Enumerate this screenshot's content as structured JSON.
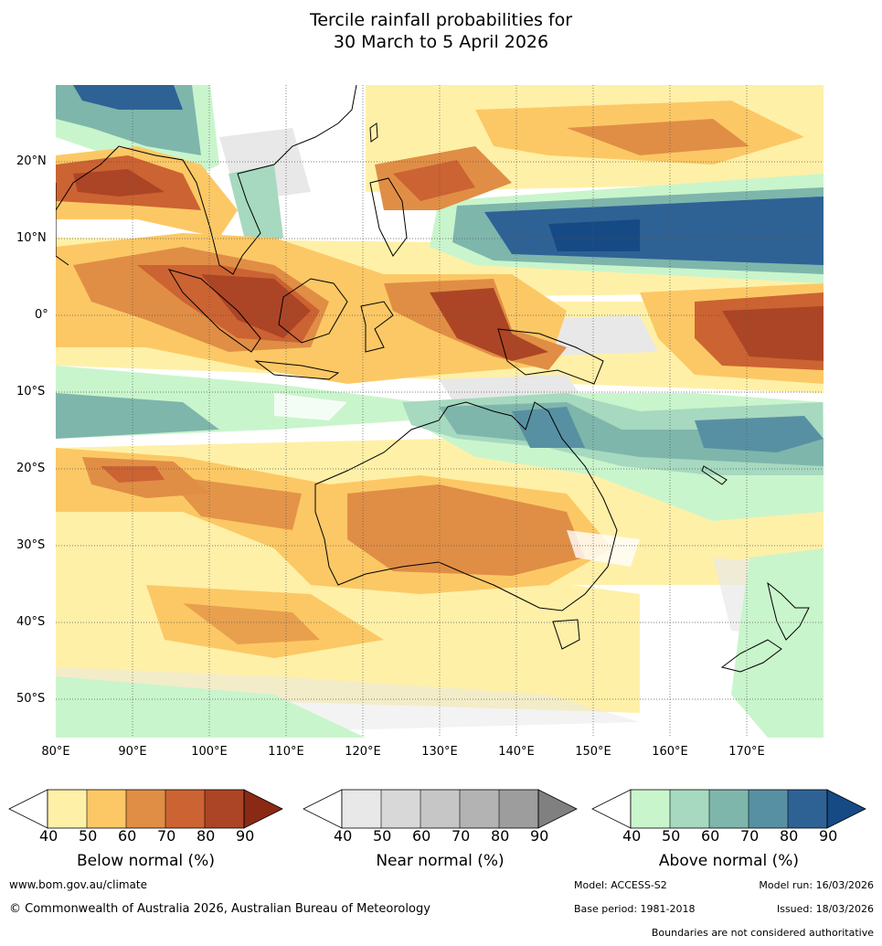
{
  "title_line1": "Tercile rainfall probabilities for",
  "title_line2": "30 March to 5 April 2026",
  "lat_labels": [
    "20°N",
    "10°N",
    "0°",
    "10°S",
    "20°S",
    "30°S",
    "40°S",
    "50°S"
  ],
  "lon_labels": [
    "80°E",
    "90°E",
    "100°E",
    "110°E",
    "120°E",
    "130°E",
    "140°E",
    "150°E",
    "160°E",
    "170°E"
  ],
  "legend": {
    "below": {
      "title": "Below normal (%)",
      "ticks": [
        "40",
        "50",
        "60",
        "70",
        "80",
        "90"
      ],
      "colors": [
        "#fff0a8",
        "#fcc865",
        "#e08e45",
        "#cc6332",
        "#ac4525",
        "#8a2a14"
      ]
    },
    "near": {
      "title": "Near normal (%)",
      "ticks": [
        "40",
        "50",
        "60",
        "70",
        "80",
        "90"
      ],
      "colors": [
        "#e8e8e8",
        "#d8d8d8",
        "#c6c6c6",
        "#b3b3b3",
        "#9d9d9d",
        "#808080"
      ]
    },
    "above": {
      "title": "Above normal (%)",
      "ticks": [
        "40",
        "50",
        "60",
        "70",
        "80",
        "90"
      ],
      "colors": [
        "#c9f5cc",
        "#a6d9bf",
        "#7eb6ac",
        "#5890a3",
        "#2e6295",
        "#164a85"
      ]
    }
  },
  "footer": {
    "website": "www.bom.gov.au/climate",
    "copyright": "© Commonwealth of Australia 2026, Australian Bureau of Meteorology",
    "model": "Model: ACCESS-S2",
    "model_run": "Model run: 16/03/2026",
    "base_period": "Base period: 1981-2018",
    "issued": "Issued: 18/03/2026",
    "disclaimer": "Boundaries are not considered authoritative"
  }
}
